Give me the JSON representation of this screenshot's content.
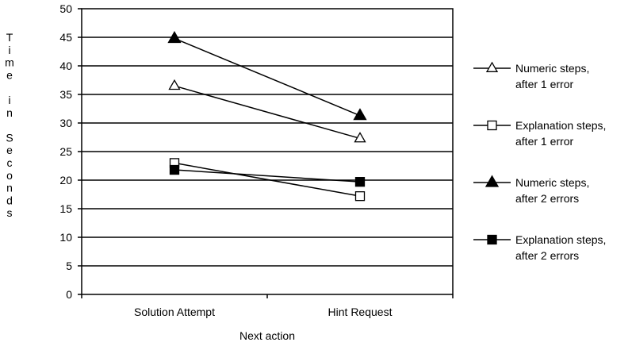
{
  "chart_data": {
    "type": "line",
    "title": "",
    "xlabel": "Next action",
    "ylabel": "Time in Seconds",
    "categories": [
      "Solution Attempt",
      "Hint Request"
    ],
    "ylim": [
      0,
      50
    ],
    "yticks": [
      0,
      5,
      10,
      15,
      20,
      25,
      30,
      35,
      40,
      45,
      50
    ],
    "grid": true,
    "legend_position": "right",
    "series": [
      {
        "name": "Numeric steps, after 1 error",
        "name_lines": [
          "Numeric steps,",
          "after 1 error"
        ],
        "marker": "triangle-open",
        "values": [
          36.5,
          27.3
        ]
      },
      {
        "name": "Explanation steps, after 1 error",
        "name_lines": [
          "Explanation steps,",
          "after 1 error"
        ],
        "marker": "square-open",
        "values": [
          23.0,
          17.2
        ]
      },
      {
        "name": "Numeric steps, after 2 errors",
        "name_lines": [
          "Numeric steps,",
          "after 2 errors"
        ],
        "marker": "triangle-filled",
        "values": [
          44.8,
          31.3
        ]
      },
      {
        "name": "Explanation steps, after 2 errors",
        "name_lines": [
          "Explanation steps,",
          "after 2 errors"
        ],
        "marker": "square-filled",
        "values": [
          21.8,
          19.7
        ]
      }
    ]
  }
}
